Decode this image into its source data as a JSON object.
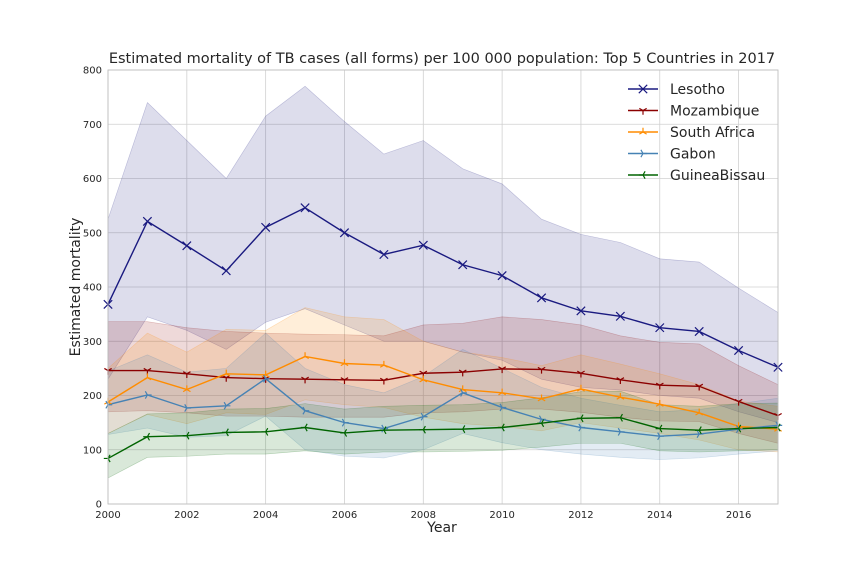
{
  "chart_data": {
    "type": "line",
    "title": "Estimated mortality of TB cases (all forms) per 100 000 population: Top 5 Countries in 2017",
    "xlabel": "Year",
    "ylabel": "Estimated mortality",
    "xlim": [
      2000,
      2017
    ],
    "ylim": [
      0,
      800
    ],
    "xticks": [
      "2000",
      "2002",
      "2004",
      "2006",
      "2008",
      "2010",
      "2012",
      "2014",
      "2016"
    ],
    "yticks": [
      "0",
      "100",
      "200",
      "300",
      "400",
      "500",
      "600",
      "700",
      "800"
    ],
    "grid": true,
    "legend_position": "top-right",
    "x": [
      2000,
      2001,
      2002,
      2003,
      2004,
      2005,
      2006,
      2007,
      2008,
      2009,
      2010,
      2011,
      2012,
      2013,
      2014,
      2015,
      2016,
      2017
    ],
    "series": [
      {
        "name": "Lesotho",
        "color": "#1a1a80",
        "marker": "x",
        "values": [
          368,
          521,
          476,
          430,
          510,
          546,
          500,
          460,
          477,
          441,
          421,
          380,
          356,
          346,
          325,
          318,
          283,
          252
        ],
        "lower": [
          230,
          345,
          320,
          285,
          335,
          360,
          330,
          300,
          300,
          280,
          265,
          230,
          215,
          210,
          200,
          195,
          170,
          150
        ],
        "upper": [
          525,
          740,
          670,
          600,
          715,
          770,
          705,
          645,
          670,
          618,
          590,
          525,
          497,
          482,
          452,
          446,
          398,
          353
        ]
      },
      {
        "name": "Mozambique",
        "color": "#8b0000",
        "marker": "tri_down",
        "values": [
          246,
          246,
          240,
          233,
          231,
          230,
          229,
          228,
          241,
          243,
          249,
          248,
          241,
          229,
          219,
          217,
          189,
          163
        ],
        "lower": [
          170,
          172,
          168,
          162,
          162,
          160,
          160,
          160,
          168,
          170,
          175,
          175,
          169,
          160,
          153,
          152,
          130,
          112
        ],
        "upper": [
          336,
          336,
          325,
          318,
          315,
          313,
          312,
          310,
          330,
          333,
          345,
          340,
          330,
          310,
          298,
          295,
          255,
          220
        ]
      },
      {
        "name": "South Africa",
        "color": "#ff8c00",
        "marker": "tri_up",
        "values": [
          188,
          233,
          211,
          240,
          238,
          272,
          259,
          256,
          229,
          211,
          205,
          194,
          212,
          197,
          184,
          168,
          143,
          138
        ],
        "lower": [
          130,
          165,
          148,
          168,
          165,
          192,
          183,
          178,
          160,
          148,
          143,
          135,
          150,
          140,
          130,
          118,
          100,
          96
        ],
        "upper": [
          250,
          315,
          280,
          322,
          320,
          362,
          345,
          340,
          300,
          280,
          270,
          255,
          275,
          258,
          240,
          220,
          190,
          180
        ]
      },
      {
        "name": "Gabon",
        "color": "#4682b4",
        "marker": "tri_right",
        "values": [
          183,
          201,
          177,
          181,
          231,
          172,
          150,
          139,
          161,
          205,
          178,
          156,
          141,
          133,
          125,
          129,
          138,
          145
        ],
        "lower": [
          128,
          140,
          123,
          126,
          162,
          100,
          88,
          85,
          100,
          130,
          113,
          100,
          92,
          86,
          82,
          85,
          92,
          98
        ],
        "upper": [
          245,
          275,
          243,
          250,
          315,
          250,
          220,
          205,
          235,
          285,
          250,
          215,
          195,
          182,
          170,
          174,
          185,
          195
        ]
      },
      {
        "name": "GuineaBissau",
        "color": "#006400",
        "marker": "tri_left",
        "values": [
          84,
          124,
          126,
          132,
          133,
          141,
          131,
          136,
          137,
          138,
          141,
          149,
          158,
          159,
          139,
          136,
          139,
          141
        ],
        "lower": [
          48,
          86,
          88,
          92,
          92,
          98,
          92,
          96,
          96,
          97,
          99,
          105,
          112,
          112,
          98,
          96,
          98,
          100
        ],
        "upper": [
          130,
          166,
          168,
          175,
          176,
          185,
          175,
          180,
          182,
          183,
          187,
          196,
          207,
          208,
          183,
          180,
          185,
          186
        ]
      }
    ]
  }
}
